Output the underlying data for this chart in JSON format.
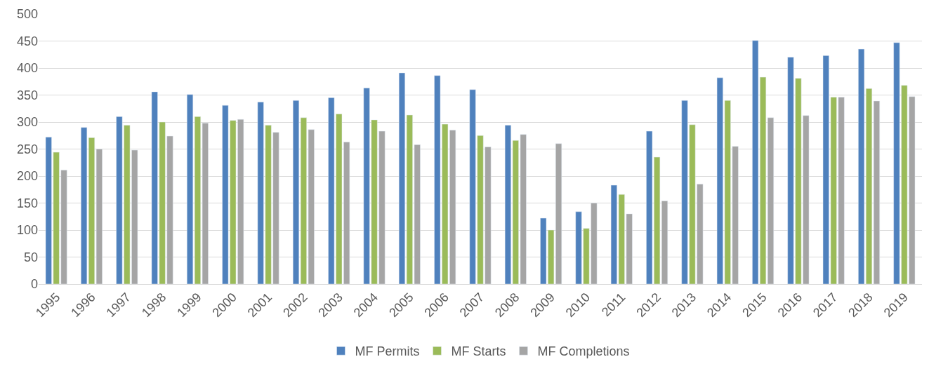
{
  "chart_data": {
    "type": "bar",
    "categories": [
      "1995",
      "1996",
      "1997",
      "1998",
      "1999",
      "2000",
      "2001",
      "2002",
      "2003",
      "2004",
      "2005",
      "2006",
      "2007",
      "2008",
      "2009",
      "2010",
      "2011",
      "2012",
      "2013",
      "2014",
      "2015",
      "2016",
      "2017",
      "2018",
      "2019"
    ],
    "series": [
      {
        "name": "MF Permits",
        "color": "#4f81bd",
        "values": [
          272,
          290,
          310,
          356,
          351,
          331,
          337,
          340,
          345,
          363,
          391,
          386,
          360,
          294,
          122,
          134,
          183,
          283,
          340,
          382,
          451,
          420,
          423,
          435,
          447
        ]
      },
      {
        "name": "MF Starts",
        "color": "#9bbb59",
        "values": [
          244,
          271,
          294,
          300,
          310,
          303,
          294,
          308,
          315,
          304,
          313,
          296,
          275,
          266,
          100,
          103,
          166,
          235,
          295,
          340,
          383,
          381,
          346,
          362,
          368
        ]
      },
      {
        "name": "MF Completions",
        "color": "#a5a5a5",
        "values": [
          211,
          250,
          248,
          274,
          298,
          305,
          281,
          286,
          263,
          283,
          258,
          285,
          254,
          277,
          260,
          150,
          130,
          154,
          185,
          255,
          308,
          312,
          346,
          339,
          347
        ]
      }
    ],
    "ylim": [
      0,
      500
    ],
    "yticks": [
      0,
      50,
      100,
      150,
      200,
      250,
      300,
      350,
      400,
      450,
      500
    ],
    "grid": "y",
    "legend": "bottom"
  }
}
